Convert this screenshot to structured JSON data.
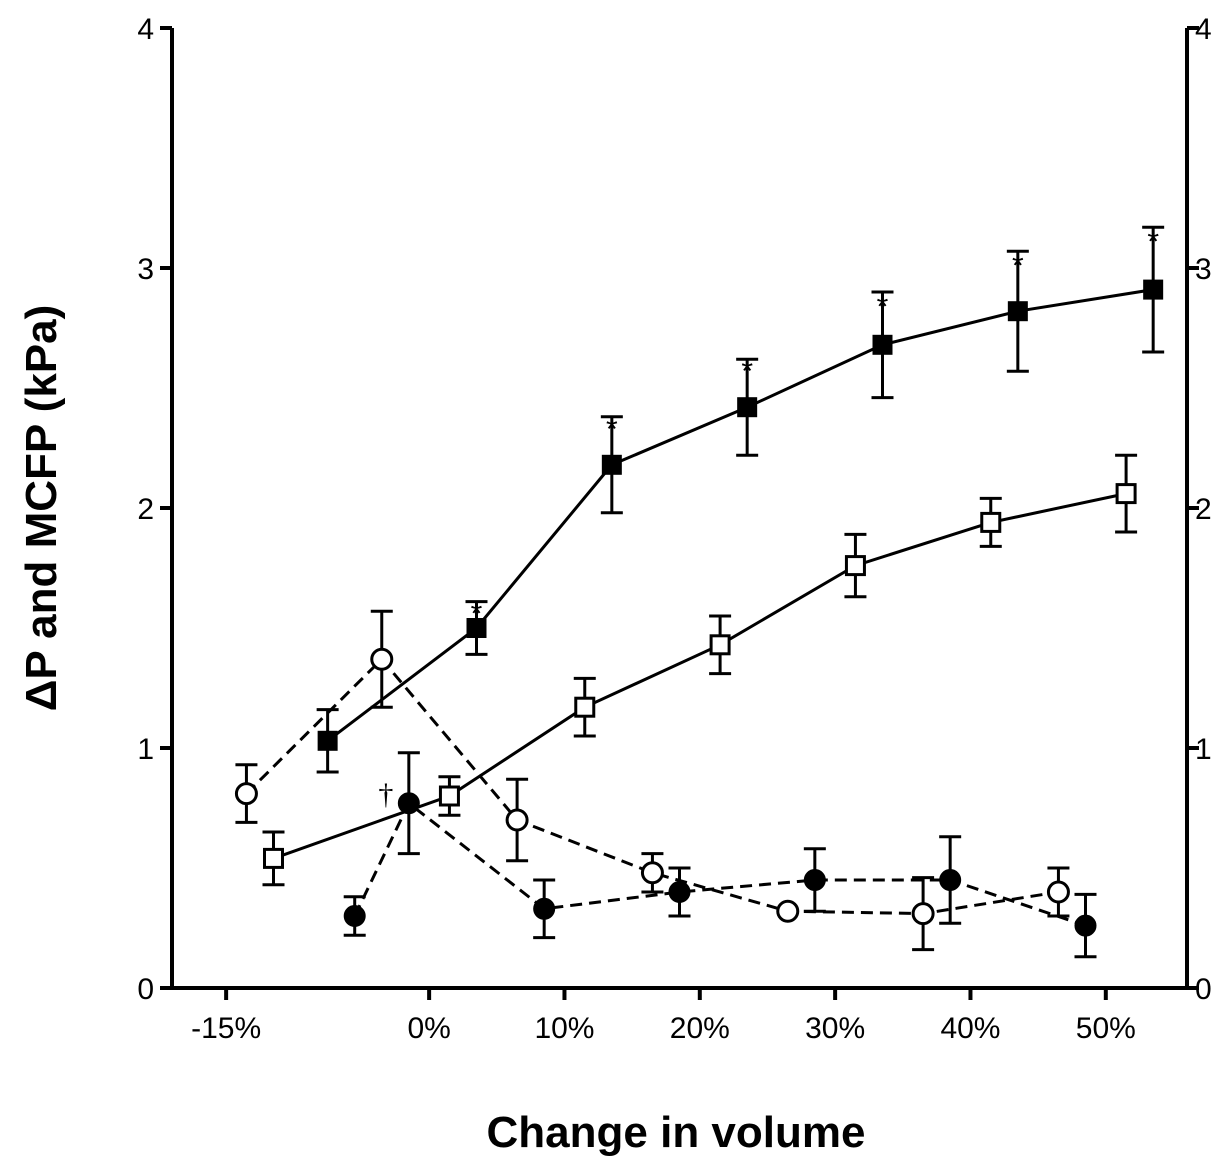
{
  "chart_data": {
    "type": "line",
    "title": "",
    "xlabel": "Change in volume",
    "ylabel": "ΔP and MCFP (kPa)",
    "ylim": [
      0,
      4
    ],
    "y_ticks": [
      "0",
      "1",
      "2",
      "3",
      "4"
    ],
    "y2_ticks": [
      "0",
      "1",
      "2",
      "3",
      "4"
    ],
    "x_ticks": [
      {
        "value": -15,
        "label": "-15%"
      },
      {
        "value": 0,
        "label": "0%"
      },
      {
        "value": 10,
        "label": "10%"
      },
      {
        "value": 20,
        "label": "20%"
      },
      {
        "value": 30,
        "label": "30%"
      },
      {
        "value": 40,
        "label": "40%"
      },
      {
        "value": 50,
        "label": "50%"
      }
    ],
    "grid": false,
    "series": [
      {
        "marker": "filled-square",
        "line": "solid",
        "points": [
          {
            "x": -7.5,
            "y": 1.03,
            "err": 0.13
          },
          {
            "x": 3.5,
            "y": 1.5,
            "err": 0.11
          },
          {
            "x": 13.5,
            "y": 2.18,
            "err": 0.2
          },
          {
            "x": 23.5,
            "y": 2.42,
            "err": 0.2
          },
          {
            "x": 33.5,
            "y": 2.68,
            "err": 0.22
          },
          {
            "x": 43.5,
            "y": 2.82,
            "err": 0.25
          },
          {
            "x": 53.5,
            "y": 2.91,
            "err": 0.26
          }
        ]
      },
      {
        "marker": "open-square",
        "line": "solid",
        "points": [
          {
            "x": -11.5,
            "y": 0.54,
            "err": 0.11
          },
          {
            "x": 1.5,
            "y": 0.8,
            "err": 0.08
          },
          {
            "x": 11.5,
            "y": 1.17,
            "err": 0.12
          },
          {
            "x": 21.5,
            "y": 1.43,
            "err": 0.12
          },
          {
            "x": 31.5,
            "y": 1.76,
            "err": 0.13
          },
          {
            "x": 41.5,
            "y": 1.94,
            "err": 0.1
          },
          {
            "x": 51.5,
            "y": 2.06,
            "err": 0.16
          }
        ]
      },
      {
        "marker": "open-circle",
        "line": "dashed",
        "points": [
          {
            "x": -13.5,
            "y": 0.81,
            "err": 0.12
          },
          {
            "x": -3.5,
            "y": 1.37,
            "err": 0.2
          },
          {
            "x": 6.5,
            "y": 0.7,
            "err": 0.17
          },
          {
            "x": 16.5,
            "y": 0.48,
            "err": 0.08
          },
          {
            "x": 26.5,
            "y": 0.32,
            "err": 0
          },
          {
            "x": 36.5,
            "y": 0.31,
            "err": 0.15
          },
          {
            "x": 46.5,
            "y": 0.4,
            "err": 0.1
          }
        ]
      },
      {
        "marker": "filled-circle",
        "line": "dashed",
        "points": [
          {
            "x": -5.5,
            "y": 0.3,
            "err": 0.08
          },
          {
            "x": -1.5,
            "y": 0.77,
            "err": 0.21
          },
          {
            "x": 8.5,
            "y": 0.33,
            "err": 0.12
          },
          {
            "x": 18.5,
            "y": 0.4,
            "err": 0.1
          },
          {
            "x": 28.5,
            "y": 0.45,
            "err": 0.13
          },
          {
            "x": 38.5,
            "y": 0.45,
            "err": 0.18
          },
          {
            "x": 48.5,
            "y": 0.26,
            "err": 0.13
          }
        ]
      }
    ],
    "annotations": [
      {
        "text": "*",
        "x": 3.5,
        "y": 1.61
      },
      {
        "text": "*",
        "x": 13.5,
        "y": 2.38
      },
      {
        "text": "*",
        "x": 23.5,
        "y": 2.62
      },
      {
        "text": "*",
        "x": 33.5,
        "y": 2.89
      },
      {
        "text": "*",
        "x": 43.5,
        "y": 3.06
      },
      {
        "text": "*",
        "x": 53.5,
        "y": 3.16
      },
      {
        "text": "†",
        "x": -3.2,
        "y": 0.8
      }
    ]
  }
}
